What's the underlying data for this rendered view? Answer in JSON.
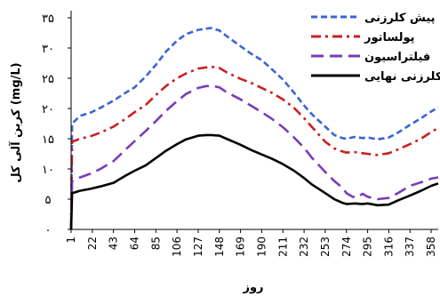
{
  "chart_data": {
    "type": "line",
    "xlabel": "روز",
    "ylabel": "کربن آلی کل (mg/L)",
    "xlim": [
      1,
      365
    ],
    "ylim": [
      0,
      35
    ],
    "x_ticks": [
      1,
      22,
      43,
      64,
      85,
      106,
      127,
      148,
      169,
      190,
      211,
      232,
      253,
      274,
      295,
      316,
      337,
      358
    ],
    "y_ticks": [
      0,
      5,
      10,
      15,
      20,
      25,
      30,
      35
    ],
    "y_tick_labels": [
      "۰",
      "۵",
      "۱۰",
      "۱۵",
      "۲۰",
      "۲۵",
      "۳۰",
      "۳۵"
    ],
    "legend_position": "top-right",
    "series": [
      {
        "name": "پیش کلرزنی",
        "color": "#3a64d8",
        "dash": "dashed",
        "x": [
          1,
          2,
          10,
          20,
          30,
          43,
          55,
          64,
          75,
          85,
          95,
          106,
          115,
          127,
          135,
          140,
          148,
          155,
          169,
          180,
          190,
          200,
          211,
          222,
          232,
          240,
          253,
          262,
          270,
          274,
          282,
          290,
          295,
          305,
          316,
          325,
          337,
          348,
          358,
          365
        ],
        "y": [
          0,
          17.5,
          18.8,
          19.3,
          20.1,
          21.3,
          22.6,
          23.5,
          25.3,
          27.2,
          29.4,
          31.2,
          32.3,
          33.0,
          33.2,
          33.3,
          32.9,
          32.0,
          30.3,
          29.0,
          28.0,
          26.5,
          24.8,
          22.6,
          20.5,
          19.0,
          17.0,
          15.6,
          15.1,
          15.0,
          15.3,
          15.1,
          15.2,
          14.9,
          15.2,
          16.0,
          17.3,
          18.4,
          19.5,
          20.2
        ]
      },
      {
        "name": "پولساتور",
        "color": "#cc1f1f",
        "dash": "dashdot",
        "x": [
          1,
          2,
          10,
          20,
          30,
          43,
          55,
          64,
          75,
          85,
          95,
          106,
          115,
          127,
          135,
          140,
          148,
          155,
          169,
          180,
          190,
          200,
          211,
          222,
          232,
          240,
          253,
          262,
          270,
          274,
          282,
          290,
          295,
          305,
          316,
          325,
          337,
          348,
          358,
          365
        ],
        "y": [
          0,
          14.5,
          15.0,
          15.4,
          16.0,
          17.0,
          18.3,
          19.4,
          20.6,
          22.2,
          23.7,
          25.0,
          25.8,
          26.6,
          26.8,
          26.9,
          26.7,
          26.0,
          24.9,
          24.2,
          23.4,
          22.6,
          21.5,
          20.1,
          18.4,
          16.9,
          14.5,
          13.4,
          12.9,
          12.7,
          12.8,
          12.6,
          12.5,
          12.3,
          12.6,
          13.2,
          14.1,
          15.0,
          16.1,
          16.8
        ]
      },
      {
        "name": "فیلتراسیون",
        "color": "#7a3cb8",
        "dash": "longdash",
        "x": [
          1,
          2,
          10,
          20,
          30,
          43,
          55,
          64,
          75,
          85,
          95,
          106,
          115,
          127,
          135,
          140,
          148,
          155,
          169,
          180,
          190,
          200,
          211,
          222,
          232,
          240,
          253,
          262,
          270,
          274,
          280,
          285,
          290,
          295,
          300,
          305,
          316,
          325,
          337,
          348,
          358,
          365
        ],
        "y": [
          0,
          8.0,
          8.6,
          9.2,
          10.0,
          11.3,
          13.2,
          14.6,
          16.3,
          17.9,
          19.6,
          21.2,
          22.4,
          23.4,
          23.7,
          23.7,
          23.5,
          22.7,
          21.5,
          20.4,
          19.4,
          18.3,
          16.9,
          15.2,
          13.5,
          11.8,
          9.5,
          8.0,
          6.9,
          6.0,
          5.4,
          5.3,
          5.9,
          5.4,
          5.2,
          5.0,
          5.2,
          6.0,
          7.2,
          7.8,
          8.4,
          8.6
        ]
      },
      {
        "name": "کلرزنی نهایی",
        "color": "#000000",
        "dash": "solid",
        "x": [
          1,
          2,
          10,
          20,
          30,
          43,
          55,
          64,
          75,
          85,
          95,
          106,
          115,
          127,
          135,
          140,
          148,
          155,
          169,
          180,
          190,
          200,
          211,
          222,
          232,
          240,
          253,
          262,
          270,
          274,
          282,
          290,
          295,
          305,
          316,
          325,
          337,
          348,
          358,
          365
        ],
        "y": [
          0,
          6.0,
          6.4,
          6.7,
          7.1,
          7.7,
          8.9,
          9.7,
          10.6,
          11.8,
          13.0,
          14.1,
          14.9,
          15.5,
          15.6,
          15.6,
          15.5,
          15.0,
          14.0,
          13.1,
          12.4,
          11.7,
          10.8,
          9.7,
          8.5,
          7.4,
          6.0,
          5.0,
          4.4,
          4.2,
          4.3,
          4.2,
          4.3,
          4.0,
          4.1,
          4.8,
          5.6,
          6.4,
          7.2,
          7.6
        ]
      }
    ]
  }
}
